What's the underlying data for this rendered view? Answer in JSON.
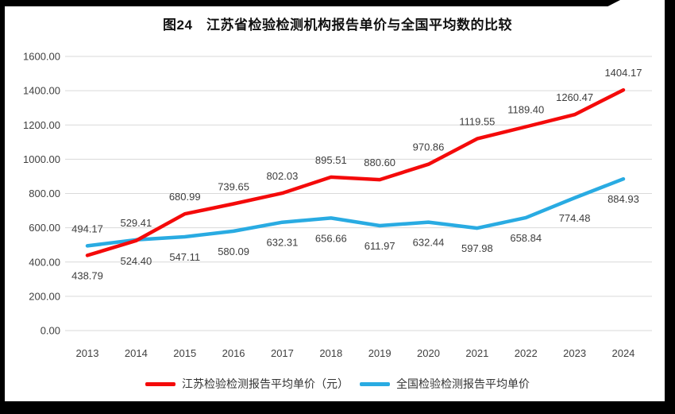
{
  "page": {
    "background": "#ffffff",
    "scan_border_color": "#000000"
  },
  "chart_data": {
    "type": "line",
    "title": "图24　江苏省检验检测机构报告单价与全国平均数的比较",
    "categories": [
      "2013",
      "2014",
      "2015",
      "2016",
      "2017",
      "2018",
      "2019",
      "2020",
      "2021",
      "2022",
      "2023",
      "2024"
    ],
    "series": [
      {
        "name": "江苏检验检测报告平均单价（元）",
        "color": "#F40A0A",
        "values": [
          438.79,
          524.4,
          680.99,
          739.65,
          802.03,
          895.51,
          880.6,
          970.86,
          1119.55,
          1189.4,
          1260.47,
          1404.17
        ],
        "label_positions": [
          "below",
          "below",
          "above",
          "above",
          "above",
          "above",
          "above",
          "above",
          "above",
          "above",
          "above",
          "above"
        ]
      },
      {
        "name": "全国检验检测报告平均单价",
        "color": "#29ABE2",
        "values": [
          494.17,
          529.41,
          547.11,
          580.09,
          632.31,
          656.66,
          611.97,
          632.44,
          597.98,
          658.84,
          774.48,
          884.93
        ],
        "label_positions": [
          "above",
          "above",
          "below",
          "below",
          "below",
          "below",
          "below",
          "below",
          "below",
          "below",
          "below",
          "below"
        ]
      }
    ],
    "ylim": [
      0,
      1600
    ],
    "ytick_step": 200,
    "ytick_format_decimals": 2,
    "grid": true,
    "gridline_color": "#d9d9d9",
    "axis_label_color": "#404040",
    "legend_position": "bottom"
  }
}
